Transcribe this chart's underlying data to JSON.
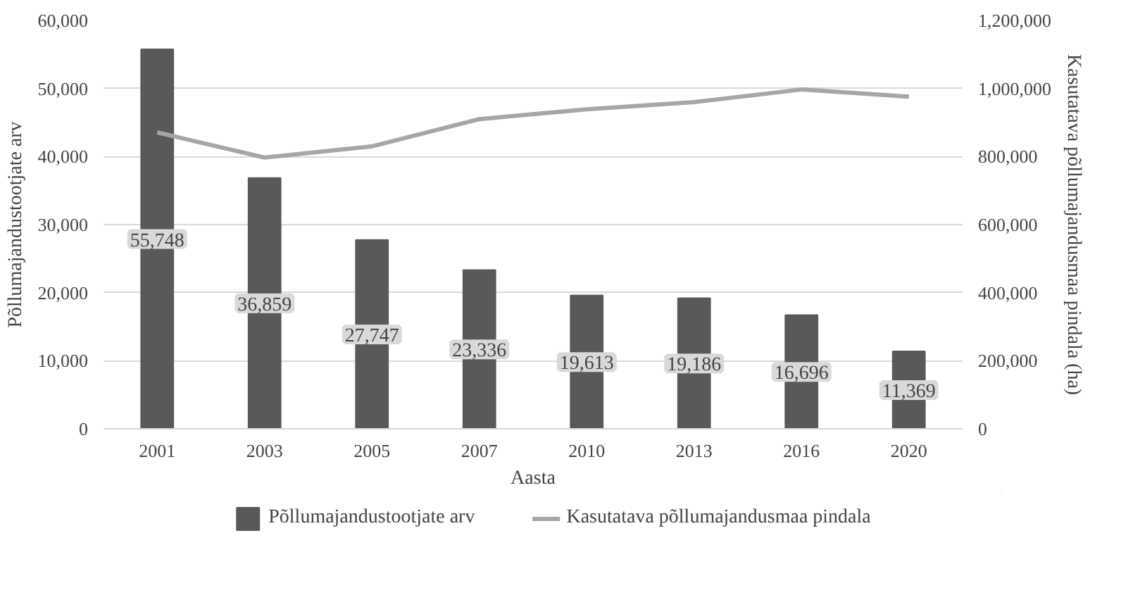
{
  "chart_data": {
    "xlabel": "Aasta",
    "ylabel": "Põllumajandustootjate arv",
    "y2label": "Kasutatava põllumajandusmaa pindala (ha)",
    "categories": [
      "2001",
      "2003",
      "2005",
      "2007",
      "2010",
      "2013",
      "2016",
      "2020"
    ],
    "series": [
      {
        "name": "Põllumajandustootjate arv",
        "color": "#595959",
        "values": [
          55748,
          36859,
          27747,
          23336,
          19613,
          19186,
          16696,
          11369
        ],
        "value_labels": [
          "55,748",
          "36,859",
          "27,747",
          "23,336",
          "19,613",
          "19,186",
          "16,696",
          "11,369"
        ]
      },
      {
        "name": "Kasutatava põllumajandusmaa pindala",
        "type": "line",
        "axis": "y2",
        "color": "#a6a6a6",
        "values": [
          871000,
          797000,
          830000,
          910000,
          939000,
          960000,
          997000,
          976000
        ]
      }
    ],
    "ylim": [
      0,
      60000
    ],
    "yticks": [
      {
        "value": 0,
        "label": "0"
      },
      {
        "value": 10000,
        "label": "10,000"
      },
      {
        "value": 20000,
        "label": "20,000"
      },
      {
        "value": 30000,
        "label": "30,000"
      },
      {
        "value": 40000,
        "label": "40,000"
      },
      {
        "value": 50000,
        "label": "50,000"
      },
      {
        "value": 60000,
        "label": "60,000"
      }
    ],
    "y2lim": [
      0,
      1200000
    ],
    "y2ticks": [
      {
        "value": 0,
        "label": "0"
      },
      {
        "value": 200000,
        "label": "200,000"
      },
      {
        "value": 400000,
        "label": "400,000"
      },
      {
        "value": 600000,
        "label": "600,000"
      },
      {
        "value": 800000,
        "label": "800,000"
      },
      {
        "value": 1000000,
        "label": "1,000,000"
      },
      {
        "value": 1200000,
        "label": "1,200,000"
      }
    ],
    "grid": "y",
    "type": "bar",
    "legend": "bottom",
    "marker": "none",
    "line_style": "solid"
  }
}
